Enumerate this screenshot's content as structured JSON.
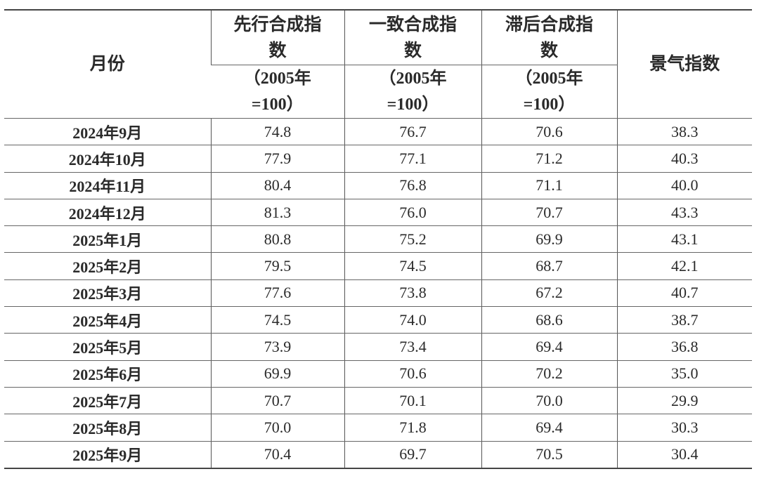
{
  "table": {
    "headers": {
      "month": "月份",
      "leading": "先行合成指数",
      "coincident": "一致合成指数",
      "lagging": "滞后合成指数",
      "unit": "（2005年=100）",
      "prosperity": "景气指数"
    },
    "rows": [
      {
        "month": "2024年9月",
        "leading": "74.8",
        "coincident": "76.7",
        "lagging": "70.6",
        "prosperity": "38.3"
      },
      {
        "month": "2024年10月",
        "leading": "77.9",
        "coincident": "77.1",
        "lagging": "71.2",
        "prosperity": "40.3"
      },
      {
        "month": "2024年11月",
        "leading": "80.4",
        "coincident": "76.8",
        "lagging": "71.1",
        "prosperity": "40.0"
      },
      {
        "month": "2024年12月",
        "leading": "81.3",
        "coincident": "76.0",
        "lagging": "70.7",
        "prosperity": "43.3"
      },
      {
        "month": "2025年1月",
        "leading": "80.8",
        "coincident": "75.2",
        "lagging": "69.9",
        "prosperity": "43.1"
      },
      {
        "month": "2025年2月",
        "leading": "79.5",
        "coincident": "74.5",
        "lagging": "68.7",
        "prosperity": "42.1"
      },
      {
        "month": "2025年3月",
        "leading": "77.6",
        "coincident": "73.8",
        "lagging": "67.2",
        "prosperity": "40.7"
      },
      {
        "month": "2025年4月",
        "leading": "74.5",
        "coincident": "74.0",
        "lagging": "68.6",
        "prosperity": "38.7"
      },
      {
        "month": "2025年5月",
        "leading": "73.9",
        "coincident": "73.4",
        "lagging": "69.4",
        "prosperity": "36.8"
      },
      {
        "month": "2025年6月",
        "leading": "69.9",
        "coincident": "70.6",
        "lagging": "70.2",
        "prosperity": "35.0"
      },
      {
        "month": "2025年7月",
        "leading": "70.7",
        "coincident": "70.1",
        "lagging": "70.0",
        "prosperity": "29.9"
      },
      {
        "month": "2025年8月",
        "leading": "70.0",
        "coincident": "71.8",
        "lagging": "69.4",
        "prosperity": "30.3"
      },
      {
        "month": "2025年9月",
        "leading": "70.4",
        "coincident": "69.7",
        "lagging": "70.5",
        "prosperity": "30.4"
      }
    ]
  }
}
